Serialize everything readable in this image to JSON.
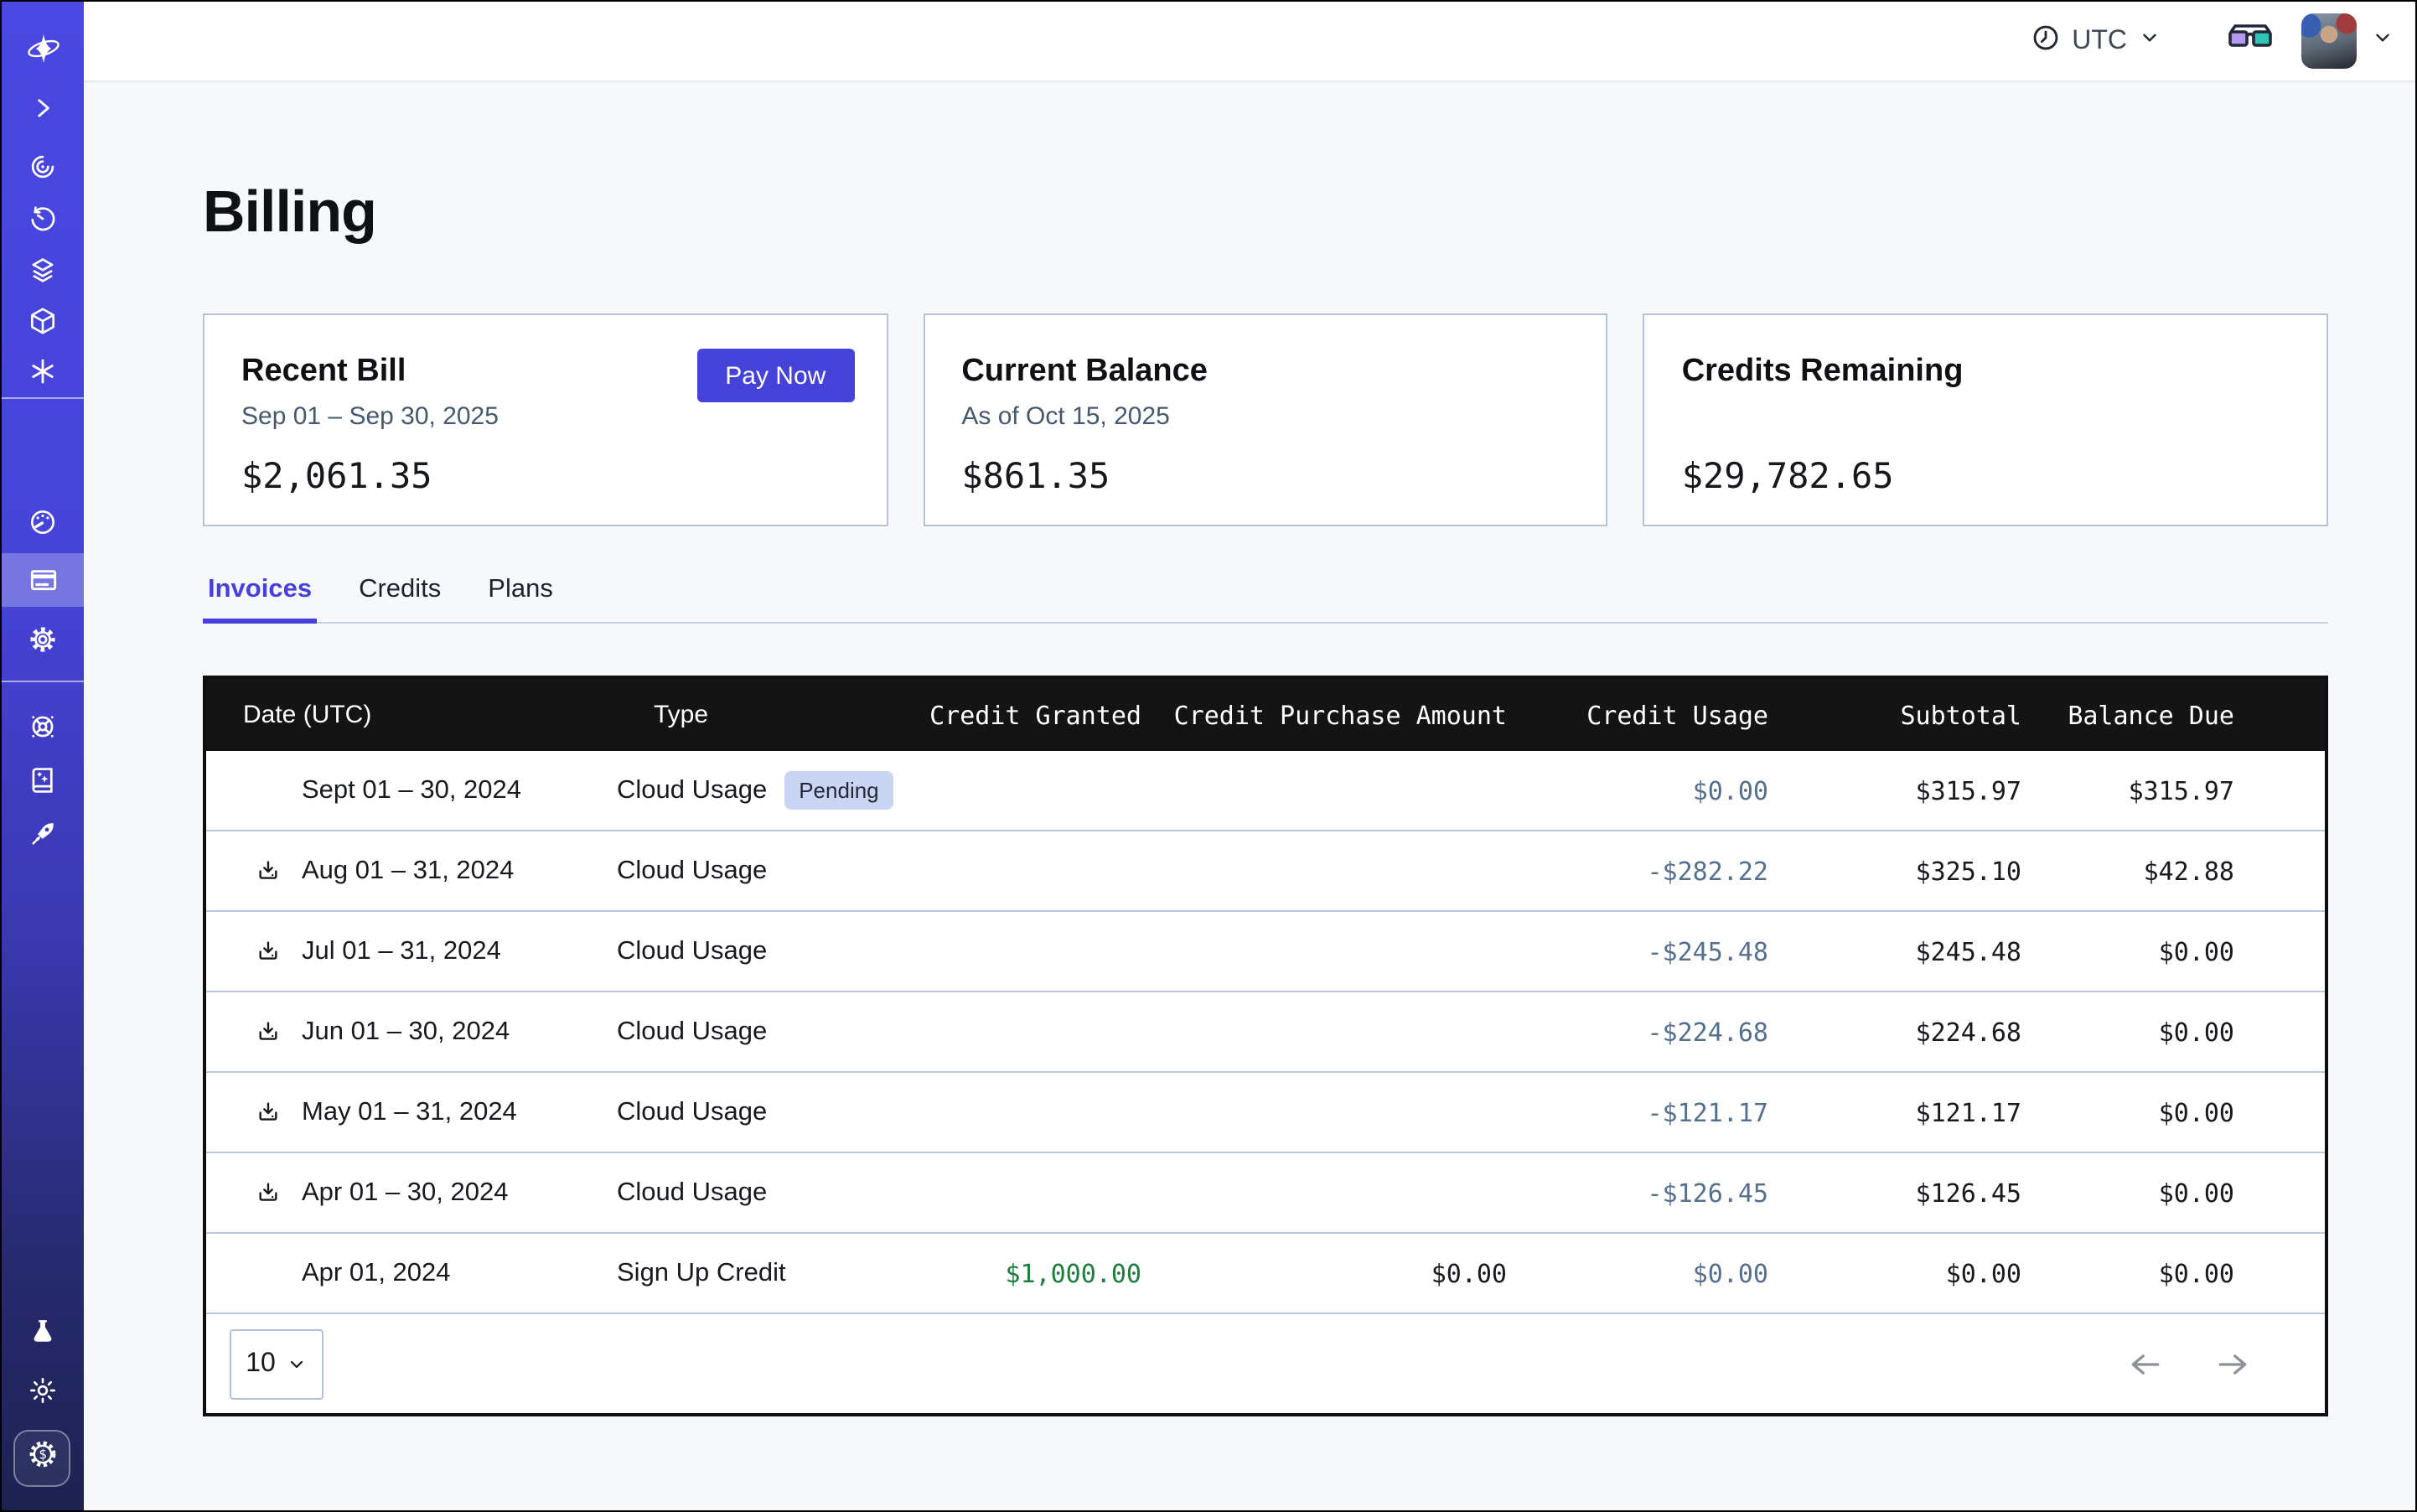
{
  "topbar": {
    "timezone": "UTC",
    "icons": [
      "clock-icon",
      "chevron-down-icon",
      "3d-glasses-icon",
      "avatar",
      "chevron-down-icon"
    ]
  },
  "page": {
    "title": "Billing"
  },
  "cards": [
    {
      "title": "Recent Bill",
      "subtitle": "Sep 01 – Sep 30, 2025",
      "amount": "$2,061.35",
      "action_label": "Pay Now"
    },
    {
      "title": "Current Balance",
      "subtitle": "As of Oct 15, 2025",
      "amount": "$861.35"
    },
    {
      "title": "Credits Remaining",
      "subtitle": "",
      "amount": "$29,782.65"
    }
  ],
  "tabs": [
    {
      "label": "Invoices",
      "active": true
    },
    {
      "label": "Credits",
      "active": false
    },
    {
      "label": "Plans",
      "active": false
    }
  ],
  "table": {
    "columns": [
      "Date (UTC)",
      "Type",
      "Credit Granted",
      "Credit Purchase Amount",
      "Credit Usage",
      "Subtotal",
      "Balance Due"
    ],
    "rows": [
      {
        "date": "Sept 01 – 30, 2024",
        "type": "Cloud Usage",
        "badge": "Pending",
        "download": false,
        "credit_granted": "",
        "credit_purchase": "",
        "credit_usage": "$0.00",
        "subtotal": "$315.97",
        "balance_due": "$315.97"
      },
      {
        "date": "Aug 01 – 31, 2024",
        "type": "Cloud Usage",
        "badge": "",
        "download": true,
        "credit_granted": "",
        "credit_purchase": "",
        "credit_usage": "-$282.22",
        "subtotal": "$325.10",
        "balance_due": "$42.88"
      },
      {
        "date": "Jul 01 – 31, 2024",
        "type": "Cloud Usage",
        "badge": "",
        "download": true,
        "credit_granted": "",
        "credit_purchase": "",
        "credit_usage": "-$245.48",
        "subtotal": "$245.48",
        "balance_due": "$0.00"
      },
      {
        "date": "Jun 01 – 30, 2024",
        "type": "Cloud Usage",
        "badge": "",
        "download": true,
        "credit_granted": "",
        "credit_purchase": "",
        "credit_usage": "-$224.68",
        "subtotal": "$224.68",
        "balance_due": "$0.00"
      },
      {
        "date": "May 01 – 31, 2024",
        "type": "Cloud Usage",
        "badge": "",
        "download": true,
        "credit_granted": "",
        "credit_purchase": "",
        "credit_usage": "-$121.17",
        "subtotal": "$121.17",
        "balance_due": "$0.00"
      },
      {
        "date": "Apr 01 – 30, 2024",
        "type": "Cloud Usage",
        "badge": "",
        "download": true,
        "credit_granted": "",
        "credit_purchase": "",
        "credit_usage": "-$126.45",
        "subtotal": "$126.45",
        "balance_due": "$0.00"
      },
      {
        "date": "Apr 01, 2024",
        "type": "Sign Up Credit",
        "badge": "",
        "download": false,
        "credit_granted": "$1,000.00",
        "credit_purchase": "$0.00",
        "credit_usage": "$0.00",
        "subtotal": "$0.00",
        "balance_due": "$0.00"
      }
    ],
    "page_size": "10"
  },
  "sidebar": {
    "icons_top": [
      "logo",
      "expand-sidebar-chevron-icon"
    ],
    "icons_nav": [
      "trace-icon",
      "history-icon",
      "layers-icon",
      "cube-icon",
      "asterisk-icon",
      "dashboard-gauge-icon",
      "billing-card-icon",
      "settings-gear-icon",
      "support-wheel-icon",
      "docs-book-icon",
      "rocket-icon"
    ],
    "active_item": "billing",
    "icons_bottom": [
      "flask-icon",
      "sun-icon",
      "dollar-badge-icon"
    ]
  },
  "colors": {
    "accent": "#4542d9",
    "sidebar_top": "#4a47e2",
    "sidebar_bottom": "#1d2150",
    "badge_bg": "#c9d5f2",
    "credit_usage_text": "#54708e",
    "credit_granted_green": "#1b7e3c",
    "table_header_bg": "#141414"
  }
}
